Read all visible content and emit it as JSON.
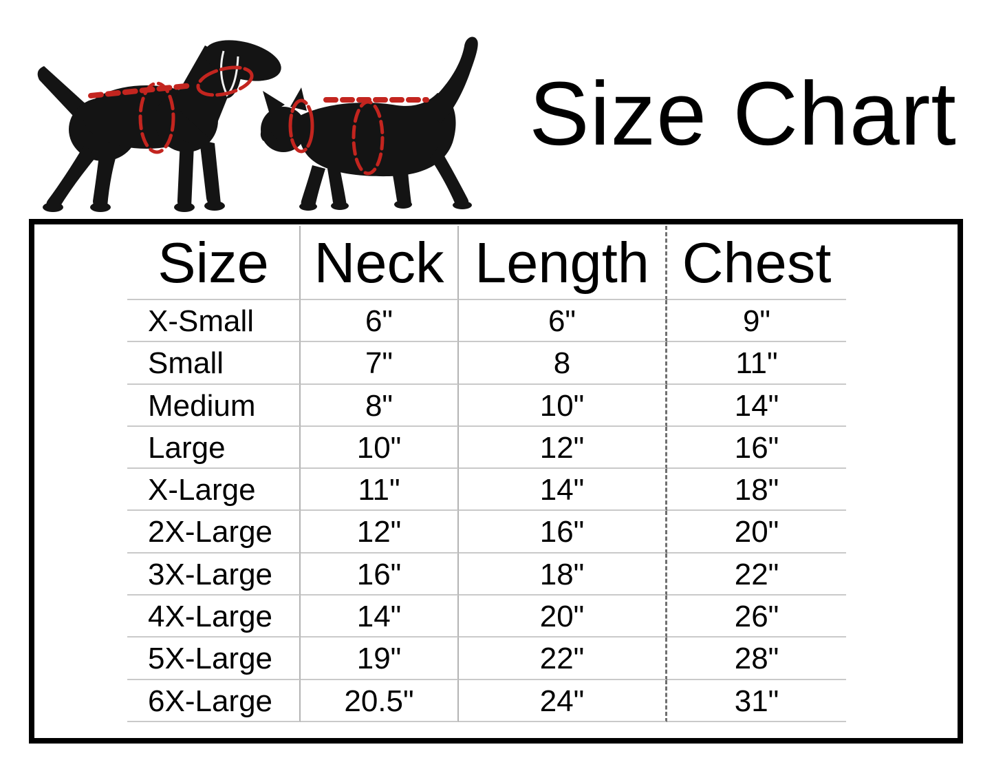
{
  "title": "Size Chart",
  "illustration": {
    "dog": "dog-silhouette-with-measurement-guides",
    "cat": "cat-silhouette-with-measurement-guides",
    "guides": [
      "back-length-dashed-line",
      "neck-girth-ellipse",
      "chest-girth-ellipse"
    ]
  },
  "colors": {
    "measurement_red": "#c3251f",
    "silhouette_black": "#141414",
    "frame_black": "#000000",
    "row_divider": "#c9c9c9",
    "column_divider": "#b3b3b3",
    "dashed_divider": "#6f6f6f",
    "ear_outline": "#f2f2f2"
  },
  "chart_data": {
    "type": "table",
    "title": "Size Chart",
    "columns": [
      "Size",
      "Neck",
      "Length",
      "Chest"
    ],
    "rows": [
      [
        "X-Small",
        "6\"",
        "6\"",
        "9\""
      ],
      [
        "Small",
        "7\"",
        "8",
        "11\""
      ],
      [
        "Medium",
        "8\"",
        "10\"",
        "14\""
      ],
      [
        "Large",
        "10\"",
        "12\"",
        "16\""
      ],
      [
        "X-Large",
        "11\"",
        "14\"",
        "18\""
      ],
      [
        "2X-Large",
        "12\"",
        "16\"",
        "20\""
      ],
      [
        "3X-Large",
        "16\"",
        "18\"",
        "22\""
      ],
      [
        "4X-Large",
        "14\"",
        "20\"",
        "26\""
      ],
      [
        "5X-Large",
        "19\"",
        "22\"",
        "28\""
      ],
      [
        "6X-Large",
        "20.5\"",
        "24\"",
        "31\""
      ]
    ]
  }
}
